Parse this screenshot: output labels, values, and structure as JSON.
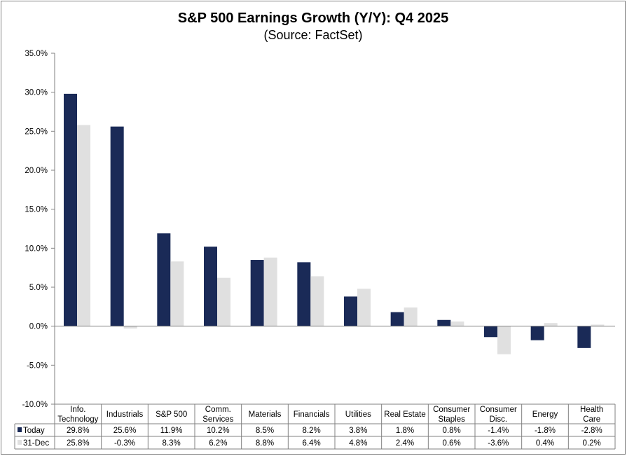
{
  "chart_data": {
    "type": "bar",
    "title": "S&P 500 Earnings Growth (Y/Y): Q4 2025",
    "subtitle": "(Source: FactSet)",
    "categories": [
      [
        "Info.",
        "Technology"
      ],
      [
        "Industrials"
      ],
      [
        "S&P 500"
      ],
      [
        "Comm.",
        "Services"
      ],
      [
        "Materials"
      ],
      [
        "Financials"
      ],
      [
        "Utilities"
      ],
      [
        "Real Estate"
      ],
      [
        "Consumer",
        "Staples"
      ],
      [
        "Consumer",
        "Disc."
      ],
      [
        "Energy"
      ],
      [
        "Health",
        "Care"
      ]
    ],
    "series": [
      {
        "name": "Today",
        "color": "#1a2a57",
        "values": [
          29.8,
          25.6,
          11.9,
          10.2,
          8.5,
          8.2,
          3.8,
          1.8,
          0.8,
          -1.4,
          -1.8,
          -2.8
        ]
      },
      {
        "name": "31-Dec",
        "color": "#e0e0e0",
        "values": [
          25.8,
          -0.3,
          8.3,
          6.2,
          8.8,
          6.4,
          4.8,
          2.4,
          0.6,
          -3.6,
          0.4,
          0.2
        ]
      }
    ],
    "ylim": [
      -10,
      35
    ],
    "yticks": [
      35,
      30,
      25,
      20,
      15,
      10,
      5,
      0,
      -5,
      -10
    ],
    "ytick_format": "percent_1dp",
    "grid": false,
    "legend": "data-table-below"
  }
}
